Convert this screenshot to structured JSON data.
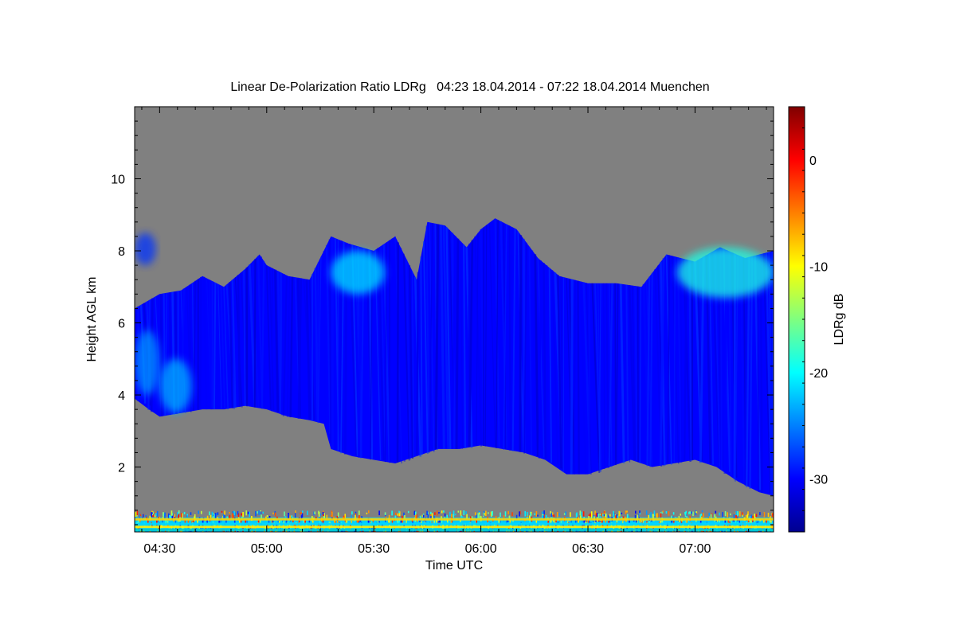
{
  "chart_data": {
    "type": "heatmap",
    "title": "Linear De-Polarization Ratio LDRg   04:23 18.04.2014 - 07:22 18.04.2014 Muenchen",
    "xlabel": "Time UTC",
    "ylabel": "Height AGL km",
    "colorbar_label": "LDRg dB",
    "x_range_utc": [
      "04:23",
      "07:22"
    ],
    "xlim_minutes": [
      263,
      442
    ],
    "ylim_km": [
      0.2,
      12.0
    ],
    "x_ticks": [
      {
        "label": "04:30",
        "minutes": 270
      },
      {
        "label": "05:00",
        "minutes": 300
      },
      {
        "label": "05:30",
        "minutes": 330
      },
      {
        "label": "06:00",
        "minutes": 360
      },
      {
        "label": "06:30",
        "minutes": 390
      },
      {
        "label": "07:00",
        "minutes": 420
      }
    ],
    "y_ticks": [
      {
        "label": "2",
        "value": 2
      },
      {
        "label": "4",
        "value": 4
      },
      {
        "label": "6",
        "value": 6
      },
      {
        "label": "8",
        "value": 8
      },
      {
        "label": "10",
        "value": 10
      }
    ],
    "colorbar": {
      "min": -35,
      "max": 5,
      "ticks": [
        {
          "label": "0",
          "value": 0
        },
        {
          "label": "-10",
          "value": -10
        },
        {
          "label": "-20",
          "value": -20
        },
        {
          "label": "-30",
          "value": -30
        }
      ],
      "colormap": "jet"
    },
    "no_signal_color": "#808080",
    "cloud": {
      "typical_ldr_db": -30,
      "top_km": [
        {
          "t": 263,
          "h": 6.4
        },
        {
          "t": 270,
          "h": 6.8
        },
        {
          "t": 276,
          "h": 6.9
        },
        {
          "t": 282,
          "h": 7.3
        },
        {
          "t": 288,
          "h": 7.0
        },
        {
          "t": 294,
          "h": 7.5
        },
        {
          "t": 298,
          "h": 7.9
        },
        {
          "t": 300,
          "h": 7.6
        },
        {
          "t": 306,
          "h": 7.3
        },
        {
          "t": 312,
          "h": 7.2
        },
        {
          "t": 318,
          "h": 8.4
        },
        {
          "t": 323,
          "h": 8.2
        },
        {
          "t": 330,
          "h": 8.0
        },
        {
          "t": 336,
          "h": 8.4
        },
        {
          "t": 342,
          "h": 7.2
        },
        {
          "t": 345,
          "h": 8.8
        },
        {
          "t": 350,
          "h": 8.7
        },
        {
          "t": 356,
          "h": 8.1
        },
        {
          "t": 360,
          "h": 8.6
        },
        {
          "t": 364,
          "h": 8.9
        },
        {
          "t": 370,
          "h": 8.6
        },
        {
          "t": 376,
          "h": 7.8
        },
        {
          "t": 382,
          "h": 7.3
        },
        {
          "t": 390,
          "h": 7.1
        },
        {
          "t": 398,
          "h": 7.1
        },
        {
          "t": 405,
          "h": 7.0
        },
        {
          "t": 412,
          "h": 7.9
        },
        {
          "t": 420,
          "h": 7.7
        },
        {
          "t": 427,
          "h": 8.1
        },
        {
          "t": 434,
          "h": 7.8
        },
        {
          "t": 442,
          "h": 8.0
        }
      ],
      "base_km": [
        {
          "t": 263,
          "h": 3.9
        },
        {
          "t": 267,
          "h": 3.6
        },
        {
          "t": 270,
          "h": 3.4
        },
        {
          "t": 276,
          "h": 3.5
        },
        {
          "t": 282,
          "h": 3.6
        },
        {
          "t": 288,
          "h": 3.6
        },
        {
          "t": 294,
          "h": 3.7
        },
        {
          "t": 300,
          "h": 3.6
        },
        {
          "t": 306,
          "h": 3.4
        },
        {
          "t": 312,
          "h": 3.3
        },
        {
          "t": 316,
          "h": 3.2
        },
        {
          "t": 318,
          "h": 2.5
        },
        {
          "t": 324,
          "h": 2.3
        },
        {
          "t": 330,
          "h": 2.2
        },
        {
          "t": 336,
          "h": 2.1
        },
        {
          "t": 342,
          "h": 2.3
        },
        {
          "t": 348,
          "h": 2.5
        },
        {
          "t": 354,
          "h": 2.5
        },
        {
          "t": 360,
          "h": 2.6
        },
        {
          "t": 366,
          "h": 2.5
        },
        {
          "t": 372,
          "h": 2.4
        },
        {
          "t": 378,
          "h": 2.2
        },
        {
          "t": 384,
          "h": 1.8
        },
        {
          "t": 390,
          "h": 1.8
        },
        {
          "t": 396,
          "h": 2.0
        },
        {
          "t": 402,
          "h": 2.2
        },
        {
          "t": 408,
          "h": 2.0
        },
        {
          "t": 414,
          "h": 2.1
        },
        {
          "t": 420,
          "h": 2.2
        },
        {
          "t": 426,
          "h": 2.0
        },
        {
          "t": 432,
          "h": 1.6
        },
        {
          "t": 438,
          "h": 1.3
        },
        {
          "t": 442,
          "h": 1.2
        }
      ]
    },
    "enhanced_regions": [
      {
        "t0": 263,
        "t1": 269,
        "h0": 7.6,
        "h1": 8.5,
        "ldr_db": -28
      },
      {
        "t0": 263,
        "t1": 270,
        "h0": 4.0,
        "h1": 5.8,
        "ldr_db": -24
      },
      {
        "t0": 270,
        "t1": 279,
        "h0": 3.5,
        "h1": 5.0,
        "ldr_db": -23
      },
      {
        "t0": 318,
        "t1": 333,
        "h0": 6.8,
        "h1": 8.0,
        "ldr_db": -21
      },
      {
        "t0": 415,
        "t1": 442,
        "h0": 6.7,
        "h1": 8.1,
        "ldr_db": -19
      }
    ],
    "boundary_layer": {
      "top_km": 0.8,
      "bands": [
        {
          "h": 0.55,
          "color": "#ffd400"
        },
        {
          "h": 0.42,
          "color": "#00d8ff"
        },
        {
          "h": 0.34,
          "color": "#ffee00"
        },
        {
          "h": 0.26,
          "color": "#00c8c8"
        }
      ]
    }
  }
}
